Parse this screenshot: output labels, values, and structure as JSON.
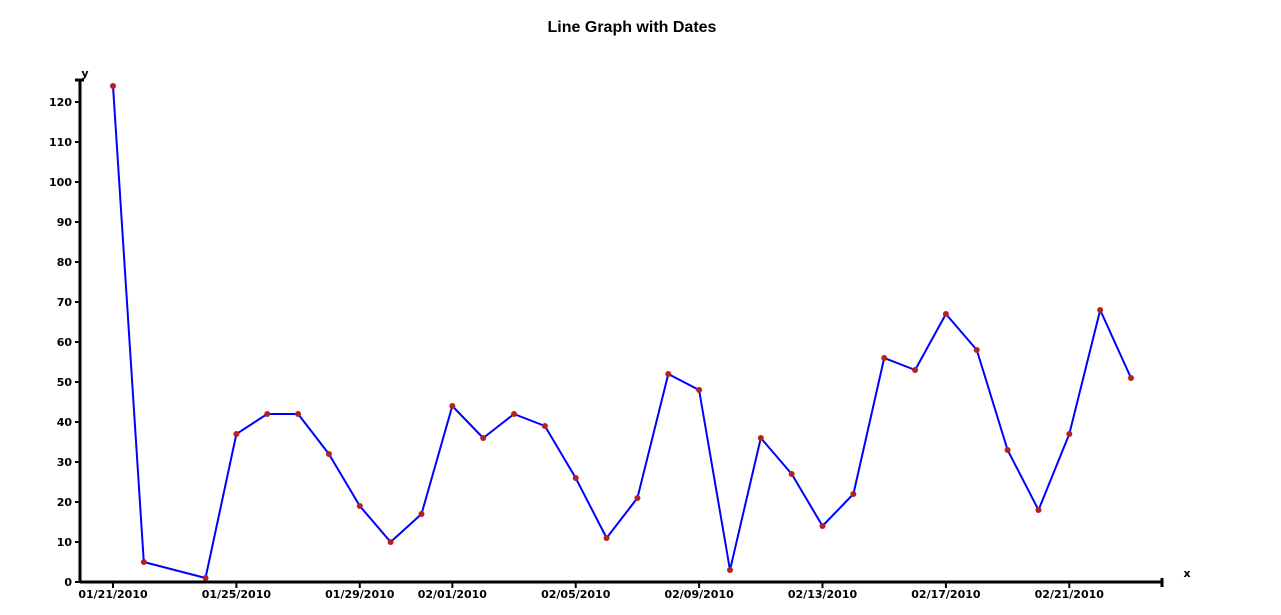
{
  "chart_data": {
    "type": "line",
    "title": "Line Graph with Dates",
    "xlabel": "x",
    "ylabel": "y",
    "ylim": [
      0,
      125
    ],
    "y_ticks": [
      0,
      10,
      20,
      30,
      40,
      50,
      60,
      70,
      80,
      90,
      100,
      110,
      120
    ],
    "x_range": [
      "2010-01-20",
      "2010-02-23"
    ],
    "x_ticks": [
      {
        "date": "2010-01-21",
        "label": "01/21/2010"
      },
      {
        "date": "2010-01-25",
        "label": "01/25/2010"
      },
      {
        "date": "2010-01-29",
        "label": "01/29/2010"
      },
      {
        "date": "2010-02-01",
        "label": "02/01/2010"
      },
      {
        "date": "2010-02-05",
        "label": "02/05/2010"
      },
      {
        "date": "2010-02-09",
        "label": "02/09/2010"
      },
      {
        "date": "2010-02-13",
        "label": "02/13/2010"
      },
      {
        "date": "2010-02-17",
        "label": "02/17/2010"
      },
      {
        "date": "2010-02-21",
        "label": "02/21/2010"
      }
    ],
    "grid": false,
    "line_color": "#0000ff",
    "marker_color": "#b22222",
    "points": [
      {
        "x": "2010-01-21",
        "y": 124
      },
      {
        "x": "2010-01-22",
        "y": 5
      },
      {
        "x": "2010-01-24",
        "y": 1
      },
      {
        "x": "2010-01-25",
        "y": 37
      },
      {
        "x": "2010-01-26",
        "y": 42
      },
      {
        "x": "2010-01-27",
        "y": 42
      },
      {
        "x": "2010-01-28",
        "y": 32
      },
      {
        "x": "2010-01-29",
        "y": 19
      },
      {
        "x": "2010-01-30",
        "y": 10
      },
      {
        "x": "2010-01-31",
        "y": 17
      },
      {
        "x": "2010-02-01",
        "y": 44
      },
      {
        "x": "2010-02-02",
        "y": 36
      },
      {
        "x": "2010-02-03",
        "y": 42
      },
      {
        "x": "2010-02-04",
        "y": 39
      },
      {
        "x": "2010-02-05",
        "y": 26
      },
      {
        "x": "2010-02-06",
        "y": 11
      },
      {
        "x": "2010-02-07",
        "y": 21
      },
      {
        "x": "2010-02-08",
        "y": 52
      },
      {
        "x": "2010-02-09",
        "y": 48
      },
      {
        "x": "2010-02-10",
        "y": 3
      },
      {
        "x": "2010-02-11",
        "y": 36
      },
      {
        "x": "2010-02-12",
        "y": 27
      },
      {
        "x": "2010-02-13",
        "y": 14
      },
      {
        "x": "2010-02-14",
        "y": 22
      },
      {
        "x": "2010-02-15",
        "y": 56
      },
      {
        "x": "2010-02-16",
        "y": 53
      },
      {
        "x": "2010-02-17",
        "y": 67
      },
      {
        "x": "2010-02-18",
        "y": 58
      },
      {
        "x": "2010-02-19",
        "y": 33
      },
      {
        "x": "2010-02-20",
        "y": 18
      },
      {
        "x": "2010-02-21",
        "y": 37
      },
      {
        "x": "2010-02-22",
        "y": 68
      },
      {
        "x": "2010-02-23",
        "y": 51
      }
    ]
  }
}
